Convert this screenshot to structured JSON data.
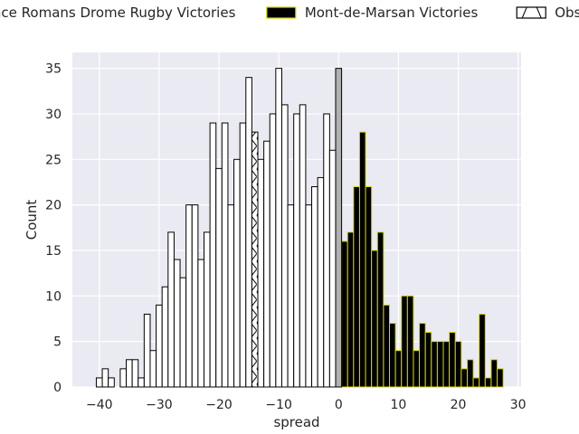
{
  "chart_data": {
    "type": "bar",
    "xlabel": "spread",
    "ylabel": "Count",
    "xlim": [
      -44.5,
      30.5
    ],
    "ylim": [
      0,
      36.75
    ],
    "xticks": [
      -40,
      -30,
      -20,
      -10,
      0,
      10,
      20,
      30
    ],
    "yticks": [
      0,
      5,
      10,
      15,
      20,
      25,
      30,
      35
    ],
    "grid": true,
    "legend": {
      "placement": "top",
      "entries": [
        {
          "label": "Valence Romans Drome Rugby Victories",
          "fill": "#ffffff",
          "edge": "#000000"
        },
        {
          "label": "Mont-de-Marsan Victories",
          "fill": "#000000",
          "edge": "#d4d400"
        },
        {
          "label": "Observed Push",
          "fill": "#ffffff",
          "edge": "#000000",
          "hatch": "chevron"
        }
      ]
    },
    "series": [
      {
        "name": "Valence Romans Drome Rugby Victories",
        "fill": "#ffffff",
        "edge": "#000000",
        "x": [
          -40,
          -39,
          -38,
          -37,
          -36,
          -35,
          -34,
          -33,
          -32,
          -31,
          -30,
          -29,
          -28,
          -27,
          -26,
          -25,
          -24,
          -23,
          -22,
          -21,
          -20,
          -19,
          -18,
          -17,
          -16,
          -15,
          -13,
          -12,
          -11,
          -10,
          -9,
          -8,
          -7,
          -6,
          -5,
          -4,
          -3,
          -2,
          -1
        ],
        "values": [
          1,
          2,
          1,
          0,
          2,
          3,
          3,
          1,
          8,
          4,
          9,
          11,
          17,
          14,
          12,
          20,
          20,
          14,
          17,
          29,
          24,
          29,
          20,
          25,
          29,
          34,
          25,
          27,
          30,
          35,
          31,
          20,
          30,
          31,
          20,
          22,
          23,
          30,
          26
        ]
      },
      {
        "name": "Mont-de-Marsan Victories",
        "fill": "#000000",
        "edge": "#d4d400",
        "x": [
          1,
          2,
          3,
          4,
          5,
          6,
          7,
          8,
          9,
          10,
          11,
          12,
          13,
          14,
          15,
          16,
          17,
          18,
          19,
          20,
          21,
          22,
          23,
          24,
          25,
          26,
          27
        ],
        "values": [
          16,
          17,
          22,
          28,
          22,
          15,
          17,
          9,
          7,
          4,
          10,
          10,
          4,
          7,
          6,
          5,
          5,
          5,
          6,
          5,
          2,
          3,
          1,
          8,
          1,
          3,
          2
        ]
      },
      {
        "name": "Observed Push",
        "fill": "#ffffff",
        "edge": "#000000",
        "hatch": "chevron",
        "x": [
          -14
        ],
        "values": [
          28
        ]
      },
      {
        "fill": "#b0b0b0",
        "edge": "#000000",
        "x": [
          0
        ],
        "values": [
          35
        ]
      }
    ]
  }
}
